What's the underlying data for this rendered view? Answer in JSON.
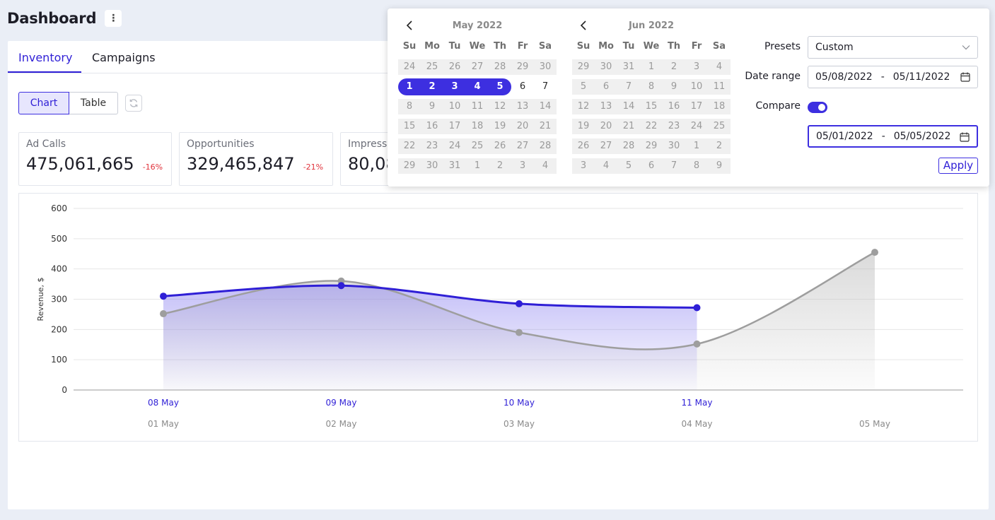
{
  "page": {
    "title": "Dashboard",
    "menu_icon": "kebab-icon"
  },
  "tabs": [
    {
      "label": "Inventory",
      "active": true
    },
    {
      "label": "Campaigns",
      "active": false
    }
  ],
  "view_toggle": {
    "chart_label": "Chart",
    "table_label": "Table",
    "active": "Chart",
    "refresh_icon": "refresh-icon"
  },
  "metrics": [
    {
      "label": "Ad Calls",
      "value": "475,061,665",
      "delta": "-16%"
    },
    {
      "label": "Opportunities",
      "value": "329,465,847",
      "delta": "-21%"
    },
    {
      "label": "Impress",
      "value": "80,08",
      "delta": ""
    }
  ],
  "chart_data": {
    "type": "area",
    "ylabel": "Revenue, $",
    "xlabel": "",
    "ylim": [
      0,
      600
    ],
    "yticks": [
      0,
      100,
      200,
      300,
      400,
      500,
      600
    ],
    "grid": true,
    "series": [
      {
        "color": "#2f1fd6",
        "x": [
          "08 May",
          "09 May",
          "10 May",
          "11 May"
        ],
        "values": [
          310,
          345,
          285,
          272
        ]
      },
      {
        "color": "#9e9e9e",
        "x": [
          "01 May",
          "02 May",
          "03 May",
          "04 May",
          "05 May"
        ],
        "values": [
          252,
          360,
          190,
          152,
          455
        ]
      }
    ]
  },
  "date_picker": {
    "calendars": [
      {
        "month_label": "May 2022",
        "dow": [
          "Su",
          "Mo",
          "Tu",
          "We",
          "Th",
          "Fr",
          "Sa"
        ],
        "weeks": [
          [
            "24",
            "25",
            "26",
            "27",
            "28",
            "29",
            "30"
          ],
          [
            "1",
            "2",
            "3",
            "4",
            "5",
            "6",
            "7"
          ],
          [
            "8",
            "9",
            "10",
            "11",
            "12",
            "13",
            "14"
          ],
          [
            "15",
            "16",
            "17",
            "18",
            "19",
            "20",
            "21"
          ],
          [
            "22",
            "23",
            "24",
            "25",
            "26",
            "27",
            "28"
          ],
          [
            "29",
            "30",
            "31",
            "1",
            "2",
            "3",
            "4"
          ]
        ],
        "selected": [
          "1",
          "2",
          "3",
          "4",
          "5"
        ],
        "enabled": [
          "6",
          "7"
        ]
      },
      {
        "month_label": "Jun 2022",
        "dow": [
          "Su",
          "Mo",
          "Tu",
          "We",
          "Th",
          "Fr",
          "Sa"
        ],
        "weeks": [
          [
            "29",
            "30",
            "31",
            "1",
            "2",
            "3",
            "4"
          ],
          [
            "5",
            "6",
            "7",
            "8",
            "9",
            "10",
            "11"
          ],
          [
            "12",
            "13",
            "14",
            "15",
            "16",
            "17",
            "18"
          ],
          [
            "19",
            "20",
            "21",
            "22",
            "23",
            "24",
            "25"
          ],
          [
            "26",
            "27",
            "28",
            "29",
            "30",
            "1",
            "2"
          ],
          [
            "3",
            "4",
            "5",
            "6",
            "7",
            "8",
            "9"
          ]
        ],
        "selected": [],
        "enabled": []
      }
    ],
    "presets_label": "Presets",
    "presets_value": "Custom",
    "date_range_label": "Date range",
    "date_range_start": "05/08/2022",
    "date_range_end": "05/11/2022",
    "compare_label": "Compare",
    "compare_on": true,
    "compare_start": "05/01/2022",
    "compare_end": "05/05/2022",
    "range_separator": "-",
    "apply_label": "Apply",
    "accent_color": "#3d2fe0"
  }
}
